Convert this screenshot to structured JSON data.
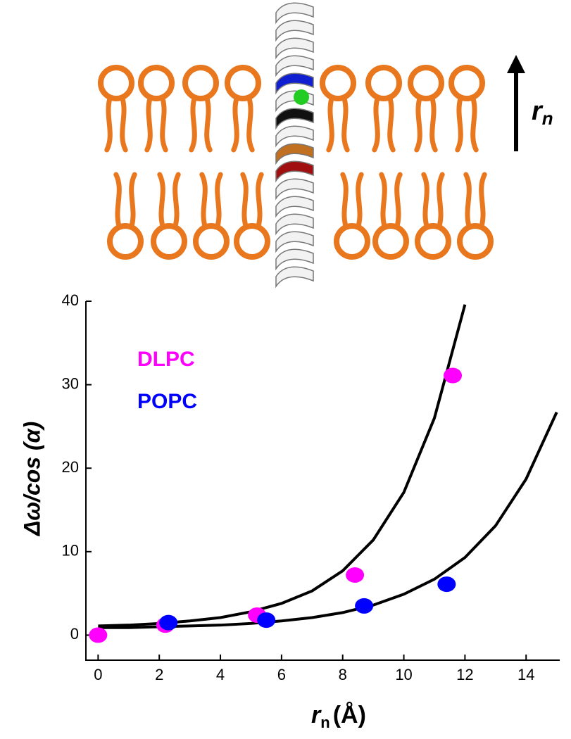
{
  "chart_data": {
    "type": "scatter",
    "diagram_label": {
      "main": "r",
      "sub": "n"
    },
    "x_label": {
      "main": "r",
      "sub": "n",
      "rest": "(Å)"
    },
    "y_label": "Δω/cos (α)",
    "xlim": [
      -0.4,
      15.1
    ],
    "ylim": [
      -3,
      40
    ],
    "xticks": [
      0,
      2,
      4,
      6,
      8,
      10,
      12,
      14
    ],
    "yticks": [
      0,
      10,
      20,
      30,
      40
    ],
    "series": [
      {
        "name": "DLPC",
        "color": "#ff00ff",
        "x": [
          0,
          2.2,
          5.2,
          8.4,
          11.6
        ],
        "values": [
          0,
          1.2,
          2.4,
          7.2,
          31.1
        ],
        "fit": {
          "x": [
            0,
            1,
            2,
            3,
            4,
            5,
            6,
            7,
            8,
            9,
            10,
            11,
            12
          ],
          "values": [
            1.1,
            1.2,
            1.4,
            1.7,
            2.1,
            2.8,
            3.8,
            5.3,
            7.7,
            11.4,
            17.1,
            26.0,
            39.6
          ]
        }
      },
      {
        "name": "POPC",
        "color": "#0000ff",
        "x": [
          2.3,
          5.5,
          8.7,
          11.4
        ],
        "values": [
          1.5,
          1.8,
          3.5,
          6.1
        ],
        "fit": {
          "x": [
            0,
            1,
            2,
            3,
            4,
            5,
            6,
            7,
            8,
            9,
            10,
            11,
            12,
            13,
            14,
            15
          ],
          "values": [
            0.9,
            0.9,
            1.0,
            1.1,
            1.2,
            1.4,
            1.7,
            2.1,
            2.7,
            3.6,
            4.9,
            6.7,
            9.3,
            13.1,
            18.7,
            26.7
          ]
        }
      }
    ]
  }
}
